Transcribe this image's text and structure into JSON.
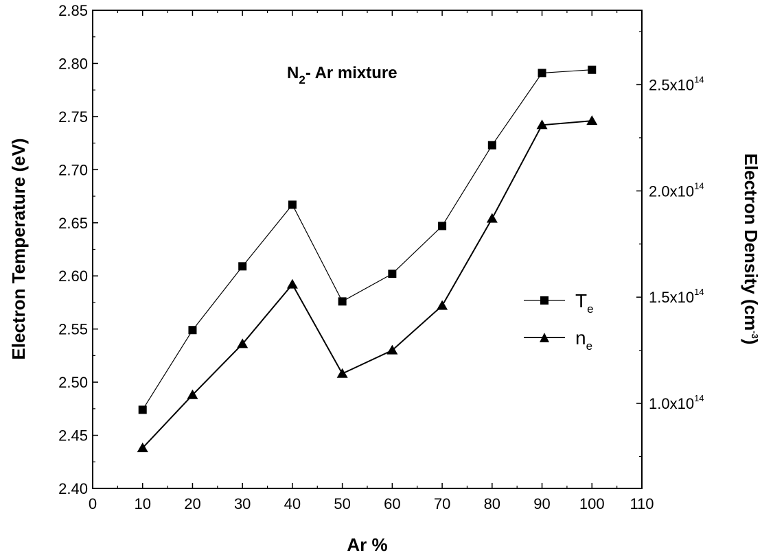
{
  "chart_data": {
    "type": "line",
    "annotation": {
      "text": "N",
      "sub": "2",
      "rest": "- Ar mixture"
    },
    "x": [
      10,
      20,
      30,
      40,
      50,
      60,
      70,
      80,
      90,
      100
    ],
    "xlim": [
      0,
      110
    ],
    "xticks": [
      0,
      10,
      20,
      30,
      40,
      50,
      60,
      70,
      80,
      90,
      100,
      110
    ],
    "xlabel": "Ar %",
    "ylabel_left": "Electron Temperature (eV)",
    "ylim_left": [
      2.4,
      2.85
    ],
    "yticks_left": [
      "2.40",
      "2.45",
      "2.50",
      "2.55",
      "2.60",
      "2.65",
      "2.70",
      "2.75",
      "2.80",
      "2.85"
    ],
    "ylabel_right": {
      "text": "Electron Density (cm",
      "sup": "-3",
      "close": ")"
    },
    "ylim_right": [
      60000000000000.0,
      285000000000000.0
    ],
    "yticks_right": [
      {
        "value": 100000000000000.0,
        "mantissa": "1.0x10",
        "exp": "14"
      },
      {
        "value": 150000000000000.0,
        "mantissa": "1.5x10",
        "exp": "14"
      },
      {
        "value": 200000000000000.0,
        "mantissa": "2.0x10",
        "exp": "14"
      },
      {
        "value": 250000000000000.0,
        "mantissa": "2.5x10",
        "exp": "14"
      }
    ],
    "series": [
      {
        "name": "T",
        "name_sub": "e",
        "axis": "left",
        "marker": "square",
        "line_width": "thin",
        "values": [
          2.474,
          2.549,
          2.609,
          2.667,
          2.576,
          2.602,
          2.647,
          2.723,
          2.791,
          2.794
        ]
      },
      {
        "name": "n",
        "name_sub": "e",
        "axis": "right",
        "marker": "triangle",
        "line_width": "thick",
        "values": [
          79000000000000.0,
          104000000000000.0,
          128000000000000.0,
          156000000000000.0,
          114000000000000.0,
          125000000000000.0,
          146000000000000.0,
          187000000000000.0,
          231000000000000.0,
          233000000000000.0
        ]
      }
    ],
    "legend_position": "right-middle",
    "grid": false,
    "colors": {
      "line": "#000000",
      "marker": "#000000",
      "background": "#ffffff"
    }
  }
}
